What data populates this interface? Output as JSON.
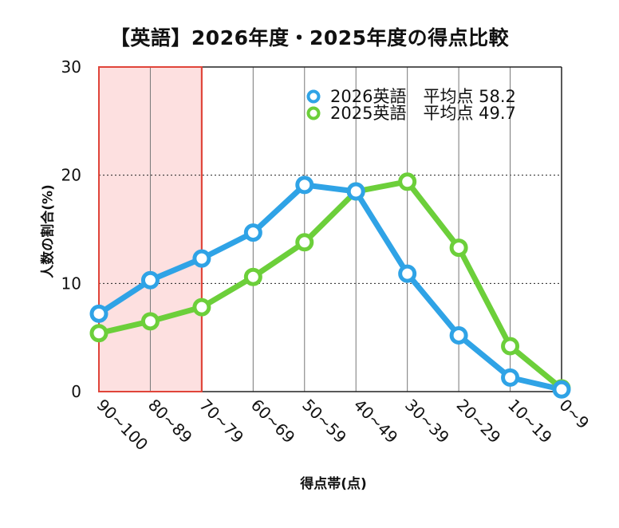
{
  "chart_data": {
    "type": "line",
    "title": "【英語】2026年度・2025年度の得点比較",
    "xlabel": "得点帯(点)",
    "ylabel": "人数の割合(%)",
    "ylim": [
      0,
      30
    ],
    "yticks": [
      0,
      10,
      20,
      30
    ],
    "categories": [
      "90~100",
      "80~89",
      "70~79",
      "60~69",
      "50~59",
      "40~49",
      "30~39",
      "20~29",
      "10~19",
      "0~9"
    ],
    "highlight": {
      "from_category": "90~100",
      "to_category": "70~79",
      "color": "#fde0e0",
      "border": "#e0453a"
    },
    "grid": {
      "horizontal": "dotted",
      "vertical": "solid"
    },
    "legend_position": "top-right",
    "series": [
      {
        "name": "2026英語",
        "label": "2026英語　平均点 58.2",
        "color": "#2fa3e6",
        "values": [
          7.2,
          10.3,
          12.3,
          14.7,
          19.1,
          18.5,
          10.9,
          5.2,
          1.3,
          0.2
        ]
      },
      {
        "name": "2025英語",
        "label": "2025英語　平均点 49.7",
        "color": "#6ccf3a",
        "values": [
          5.4,
          6.5,
          7.8,
          10.6,
          13.8,
          18.5,
          19.4,
          13.3,
          4.2,
          0.3
        ]
      }
    ]
  }
}
